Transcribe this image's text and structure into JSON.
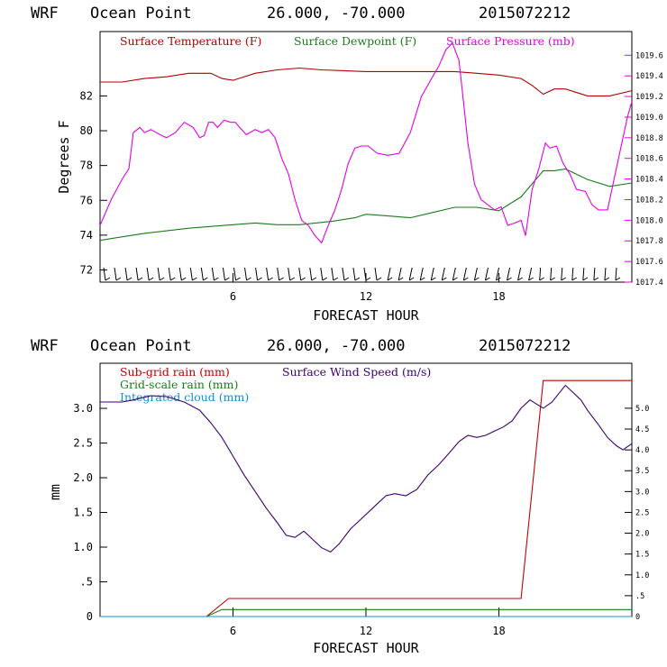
{
  "colors": {
    "temperature": "#b00000",
    "dewpoint": "#1a7a1a",
    "pressure": "#e000e0",
    "subgrid_rain": "#c00000",
    "gridscale_rain": "#1a7a1a",
    "integrated_cloud": "#1090d0",
    "wind": "#3a0070",
    "axis": "#000000"
  },
  "chart_data": [
    {
      "type": "line",
      "header": {
        "model": "WRF",
        "location": "Ocean Point",
        "coords": "26.000, -70.000",
        "init": "2015072212"
      },
      "xlabel": "FORECAST HOUR",
      "ylabel": "Degrees F",
      "xlim": [
        0,
        24
      ],
      "ylim": [
        71.3,
        85.7
      ],
      "xticks": [
        "6",
        "12",
        "18"
      ],
      "yticks": [
        "72",
        "74",
        "76",
        "78",
        "80",
        "82"
      ],
      "y2lim": [
        1017.4,
        1019.83
      ],
      "y2ticks": [
        "1017.4",
        "1017.6",
        "1017.8",
        "1018.0",
        "1018.2",
        "1018.4",
        "1018.6",
        "1018.8",
        "1019.0",
        "1019.2",
        "1019.4",
        "1019.6"
      ],
      "legend": [
        "Surface Temperature (F)",
        "Surface Dewpoint (F)",
        "Surface Pressure (mb)"
      ],
      "series": [
        {
          "name": "Surface Temperature (F)",
          "axis": "left",
          "x": [
            0,
            1,
            2,
            3,
            4,
            5,
            5.5,
            6,
            7,
            8,
            9,
            10,
            12,
            14,
            16,
            17,
            18,
            19,
            19.5,
            20,
            20.5,
            21,
            22,
            23,
            24
          ],
          "y": [
            82.8,
            82.8,
            83.0,
            83.1,
            83.3,
            83.3,
            83.0,
            82.9,
            83.3,
            83.5,
            83.6,
            83.5,
            83.4,
            83.4,
            83.4,
            83.3,
            83.2,
            83.0,
            82.6,
            82.1,
            82.4,
            82.4,
            82.0,
            82.0,
            82.3
          ]
        },
        {
          "name": "Surface Dewpoint (F)",
          "axis": "left",
          "x": [
            0,
            0.5,
            2,
            4,
            6,
            7,
            8,
            9,
            10.5,
            11.5,
            12,
            13,
            14,
            15,
            16,
            17,
            18,
            19,
            20,
            20.5,
            21,
            22,
            23,
            24
          ],
          "y": [
            73.7,
            73.8,
            74.1,
            74.4,
            74.6,
            74.7,
            74.6,
            74.6,
            74.8,
            75.0,
            75.2,
            75.1,
            75.0,
            75.3,
            75.6,
            75.6,
            75.4,
            76.2,
            77.7,
            77.7,
            77.8,
            77.2,
            76.8,
            77.0
          ]
        },
        {
          "name": "Surface Pressure (mb)",
          "axis": "right",
          "x": [
            0,
            0.5,
            1.0,
            1.3,
            1.5,
            1.8,
            2.0,
            2.3,
            2.7,
            3.0,
            3.4,
            3.8,
            4.2,
            4.5,
            4.7,
            4.9,
            5.1,
            5.3,
            5.6,
            5.9,
            6.1,
            6.3,
            6.6,
            7.0,
            7.3,
            7.6,
            7.9,
            8.2,
            8.5,
            8.8,
            9.1,
            9.4,
            9.7,
            10.0,
            10.3,
            10.6,
            10.9,
            11.2,
            11.5,
            11.8,
            12.1,
            12.5,
            13.0,
            13.5,
            14.0,
            14.5,
            14.9,
            15.3,
            15.6,
            15.9,
            16.2,
            16.4,
            16.6,
            16.9,
            17.2,
            17.5,
            17.8,
            18.1,
            18.4,
            18.8,
            19.0,
            19.2,
            19.3,
            19.5,
            19.8,
            20.1,
            20.3,
            20.6,
            20.9,
            21.2,
            21.5,
            21.9,
            22.2,
            22.5,
            22.9,
            23.2,
            23.5,
            23.8,
            24.0
          ],
          "y": [
            1017.95,
            1018.2,
            1018.4,
            1018.5,
            1018.85,
            1018.9,
            1018.85,
            1018.88,
            1018.83,
            1018.8,
            1018.85,
            1018.95,
            1018.9,
            1018.8,
            1018.82,
            1018.95,
            1018.95,
            1018.9,
            1018.97,
            1018.95,
            1018.95,
            1018.9,
            1018.83,
            1018.88,
            1018.85,
            1018.88,
            1018.8,
            1018.6,
            1018.45,
            1018.2,
            1018.0,
            1017.95,
            1017.85,
            1017.78,
            1017.95,
            1018.1,
            1018.3,
            1018.55,
            1018.7,
            1018.72,
            1018.72,
            1018.65,
            1018.63,
            1018.65,
            1018.85,
            1019.2,
            1019.35,
            1019.5,
            1019.65,
            1019.72,
            1019.55,
            1019.15,
            1018.75,
            1018.35,
            1018.2,
            1018.15,
            1018.1,
            1018.13,
            1017.95,
            1017.98,
            1018.0,
            1017.85,
            1018.0,
            1018.3,
            1018.5,
            1018.75,
            1018.7,
            1018.72,
            1018.55,
            1018.45,
            1018.3,
            1018.28,
            1018.15,
            1018.1,
            1018.1,
            1018.4,
            1018.7,
            1019.0,
            1019.15
          ]
        }
      ],
      "wind_barbs": "wind barbs along bottom of panel (easterly winds)"
    },
    {
      "type": "line",
      "header": {
        "model": "WRF",
        "location": "Ocean Point",
        "coords": "26.000, -70.000",
        "init": "2015072212"
      },
      "xlabel": "FORECAST HOUR",
      "ylabel": "mm",
      "xlim": [
        0,
        24
      ],
      "ylim": [
        0,
        3.65
      ],
      "xticks": [
        "6",
        "12",
        "18"
      ],
      "yticks": [
        "0",
        ".5",
        "1.0",
        "1.5",
        "2.0",
        "2.5",
        "3.0"
      ],
      "y2lim": [
        0,
        6.08
      ],
      "y2ticks": [
        "0",
        ".5",
        "1.0",
        "1.5",
        "2.0",
        "2.5",
        "3.0",
        "3.5",
        "4.0",
        "4.5",
        "5.0"
      ],
      "legend": [
        "Sub-grid rain (mm)",
        "Grid-scale rain (mm)",
        "Integrated cloud (mm)",
        "Surface Wind Speed (m/s)"
      ],
      "series": [
        {
          "name": "Sub-grid rain (mm)",
          "axis": "left",
          "x": [
            0,
            4.8,
            5.8,
            19.0,
            20.0,
            24.0
          ],
          "y": [
            0,
            0,
            0.26,
            0.26,
            3.4,
            3.4
          ]
        },
        {
          "name": "Grid-scale rain (mm)",
          "axis": "left",
          "x": [
            0,
            4.8,
            5.5,
            24.0
          ],
          "y": [
            0,
            0,
            0.1,
            0.1
          ]
        },
        {
          "name": "Integrated cloud (mm)",
          "axis": "left",
          "x": [
            0,
            24.0
          ],
          "y": [
            0,
            0
          ]
        },
        {
          "name": "Surface Wind Speed (m/s)",
          "axis": "right",
          "x": [
            0,
            1.0,
            1.5,
            2.3,
            3.0,
            3.8,
            4.5,
            5.0,
            5.5,
            6.0,
            6.5,
            7.0,
            7.5,
            8.0,
            8.4,
            8.8,
            9.2,
            9.6,
            10.0,
            10.4,
            10.8,
            11.3,
            11.8,
            12.3,
            12.9,
            13.3,
            13.8,
            14.3,
            14.8,
            15.3,
            15.8,
            16.2,
            16.6,
            17.0,
            17.4,
            17.8,
            18.2,
            18.6,
            19.0,
            19.4,
            19.7,
            20.0,
            20.4,
            20.7,
            21.0,
            21.3,
            21.7,
            22.0,
            22.5,
            22.9,
            23.3,
            23.6,
            24.0
          ],
          "y": [
            5.15,
            5.15,
            5.2,
            5.3,
            5.28,
            5.15,
            4.95,
            4.65,
            4.3,
            3.85,
            3.4,
            3.0,
            2.6,
            2.25,
            1.95,
            1.9,
            2.05,
            1.85,
            1.65,
            1.55,
            1.75,
            2.1,
            2.35,
            2.6,
            2.9,
            2.95,
            2.9,
            3.05,
            3.4,
            3.65,
            3.95,
            4.2,
            4.35,
            4.3,
            4.35,
            4.45,
            4.55,
            4.7,
            5.0,
            5.2,
            5.1,
            5.0,
            5.15,
            5.35,
            5.55,
            5.4,
            5.2,
            4.95,
            4.6,
            4.3,
            4.1,
            4.0,
            4.15
          ]
        }
      ]
    }
  ]
}
